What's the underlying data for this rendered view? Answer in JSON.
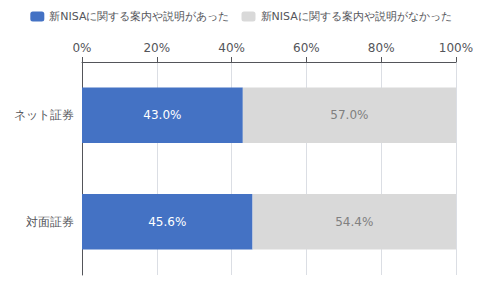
{
  "chart_data": {
    "type": "bar",
    "orientation": "horizontal",
    "stacked": true,
    "categories": [
      "ネット証券",
      "対面証券"
    ],
    "series": [
      {
        "name": "新NISAに関する案内や説明があった",
        "color": "#4472C4",
        "values": [
          43.0,
          45.6
        ],
        "value_labels": [
          "43.0%",
          "45.6%"
        ]
      },
      {
        "name": "新NISAに関する案内や説明がなかった",
        "color": "#D9D9D9",
        "values": [
          57.0,
          54.4
        ],
        "value_labels": [
          "57.0%",
          "54.4%"
        ]
      }
    ],
    "xlim": [
      0,
      100
    ],
    "xticks": [
      {
        "value": 0,
        "label": "0%"
      },
      {
        "value": 20,
        "label": "20%"
      },
      {
        "value": 40,
        "label": "40%"
      },
      {
        "value": 60,
        "label": "60%"
      },
      {
        "value": 80,
        "label": "80%"
      },
      {
        "value": 100,
        "label": "100%"
      }
    ],
    "grid": true,
    "legend": "top",
    "data_labels": true
  }
}
